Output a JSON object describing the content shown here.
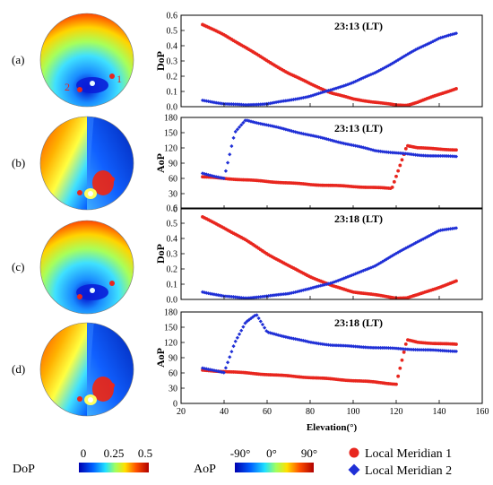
{
  "panels": [
    {
      "label": "(a)",
      "sky": "dop",
      "markers": [
        "2",
        "1"
      ]
    },
    {
      "label": "(b)",
      "sky": "aop",
      "markers": []
    },
    {
      "label": "(c)",
      "sky": "dop",
      "markers": []
    },
    {
      "label": "(d)",
      "sky": "aop",
      "markers": []
    }
  ],
  "colorbars": {
    "dop": {
      "name": "DoP",
      "ticks": [
        "0",
        "0.25",
        "0.5"
      ]
    },
    "aop": {
      "name": "AoP",
      "ticks": [
        "-90°",
        "0°",
        "90°"
      ]
    }
  },
  "legend": [
    {
      "name": "Local Meridian 1",
      "color": "#e8261e",
      "marker": "circle"
    },
    {
      "name": "Local Meridian 2",
      "color": "#1f2fd6",
      "marker": "diamond"
    }
  ],
  "colors": {
    "series1": "#e8261e",
    "series2": "#1f2fd6"
  },
  "chart_data": [
    {
      "type": "scatter",
      "title": "23:13 (LT)",
      "ylabel": "DoP",
      "xlim": [
        20,
        160
      ],
      "ylim": [
        0,
        0.6
      ],
      "yticks": [
        "0.0",
        "0.1",
        "0.2",
        "0.3",
        "0.4",
        "0.5",
        "0.6"
      ],
      "series": [
        {
          "name": "Local Meridian 1",
          "x": [
            30,
            40,
            50,
            60,
            70,
            80,
            90,
            100,
            110,
            120,
            125,
            130,
            140,
            148
          ],
          "y": [
            0.54,
            0.47,
            0.39,
            0.3,
            0.22,
            0.15,
            0.09,
            0.05,
            0.03,
            0.01,
            0.01,
            0.03,
            0.08,
            0.12
          ]
        },
        {
          "name": "Local Meridian 2",
          "x": [
            30,
            40,
            50,
            60,
            70,
            80,
            90,
            100,
            110,
            120,
            130,
            140,
            148
          ],
          "y": [
            0.04,
            0.02,
            0.01,
            0.02,
            0.04,
            0.07,
            0.11,
            0.16,
            0.22,
            0.3,
            0.38,
            0.45,
            0.48
          ]
        }
      ]
    },
    {
      "type": "scatter",
      "title": "23:13 (LT)",
      "ylabel": "AoP",
      "xlim": [
        20,
        160
      ],
      "ylim": [
        0,
        180
      ],
      "yticks": [
        "0",
        "30",
        "60",
        "90",
        "120",
        "150",
        "180"
      ],
      "series": [
        {
          "name": "Local Meridian 1",
          "x": [
            30,
            40,
            50,
            60,
            70,
            80,
            90,
            100,
            110,
            118,
            125,
            130,
            140,
            148
          ],
          "y": [
            63,
            60,
            57,
            54,
            51,
            48,
            46,
            44,
            42,
            40,
            125,
            120,
            118,
            116
          ]
        },
        {
          "name": "Local Meridian 2",
          "x": [
            30,
            40,
            45,
            50,
            55,
            60,
            70,
            80,
            90,
            100,
            110,
            120,
            130,
            140,
            148
          ],
          "y": [
            70,
            60,
            150,
            175,
            170,
            165,
            155,
            145,
            135,
            125,
            115,
            110,
            106,
            104,
            103
          ]
        }
      ]
    },
    {
      "type": "scatter",
      "title": "23:18 (LT)",
      "ylabel": "DoP",
      "xlim": [
        20,
        160
      ],
      "ylim": [
        0,
        0.6
      ],
      "yticks": [
        "0.0",
        "0.1",
        "0.2",
        "0.3",
        "0.4",
        "0.5",
        "0.6"
      ],
      "series": [
        {
          "name": "Local Meridian 1",
          "x": [
            30,
            40,
            50,
            60,
            70,
            80,
            90,
            100,
            110,
            120,
            125,
            130,
            140,
            148
          ],
          "y": [
            0.54,
            0.47,
            0.39,
            0.3,
            0.22,
            0.15,
            0.09,
            0.05,
            0.03,
            0.01,
            0.01,
            0.03,
            0.08,
            0.12
          ]
        },
        {
          "name": "Local Meridian 2",
          "x": [
            30,
            40,
            50,
            60,
            70,
            80,
            90,
            100,
            110,
            120,
            130,
            140,
            148
          ],
          "y": [
            0.05,
            0.02,
            0.01,
            0.02,
            0.04,
            0.07,
            0.11,
            0.16,
            0.22,
            0.3,
            0.38,
            0.45,
            0.47
          ]
        }
      ]
    },
    {
      "type": "scatter",
      "title": "23:18 (LT)",
      "ylabel": "AoP",
      "xlim": [
        20,
        160
      ],
      "ylim": [
        0,
        180
      ],
      "yticks": [
        "0",
        "30",
        "60",
        "90",
        "120",
        "150",
        "180"
      ],
      "series": [
        {
          "name": "Local Meridian 1",
          "x": [
            30,
            40,
            50,
            60,
            70,
            80,
            90,
            100,
            110,
            120,
            125,
            130,
            140,
            148
          ],
          "y": [
            65,
            63,
            60,
            57,
            54,
            51,
            48,
            45,
            42,
            38,
            125,
            120,
            118,
            116
          ]
        },
        {
          "name": "Local Meridian 2",
          "x": [
            30,
            40,
            45,
            50,
            55,
            60,
            70,
            80,
            90,
            100,
            110,
            120,
            130,
            140,
            148
          ],
          "y": [
            70,
            60,
            120,
            160,
            175,
            140,
            130,
            120,
            115,
            112,
            110,
            108,
            106,
            104,
            103
          ]
        }
      ]
    }
  ],
  "xaxis": {
    "label": "Elevation(°)",
    "ticks": [
      "20",
      "40",
      "60",
      "80",
      "100",
      "120",
      "140",
      "160"
    ]
  }
}
